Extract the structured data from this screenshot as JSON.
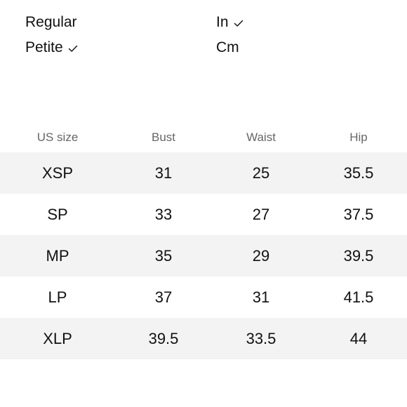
{
  "fit_options": {
    "items": [
      {
        "label": "Regular",
        "selected": false
      },
      {
        "label": "Petite",
        "selected": true
      }
    ]
  },
  "unit_options": {
    "items": [
      {
        "label": "In",
        "selected": true
      },
      {
        "label": "Cm",
        "selected": false
      }
    ]
  },
  "icons": {
    "check": "check-icon"
  },
  "colors": {
    "text": "#111111",
    "header_text": "#666666",
    "row_shade": "#f3f3f3",
    "background": "#ffffff"
  },
  "size_table": {
    "headers": [
      "US size",
      "Bust",
      "Waist",
      "Hip"
    ],
    "rows": [
      [
        "XSP",
        "31",
        "25",
        "35.5"
      ],
      [
        "SP",
        "33",
        "27",
        "37.5"
      ],
      [
        "MP",
        "35",
        "29",
        "39.5"
      ],
      [
        "LP",
        "37",
        "31",
        "41.5"
      ],
      [
        "XLP",
        "39.5",
        "33.5",
        "44"
      ]
    ]
  }
}
